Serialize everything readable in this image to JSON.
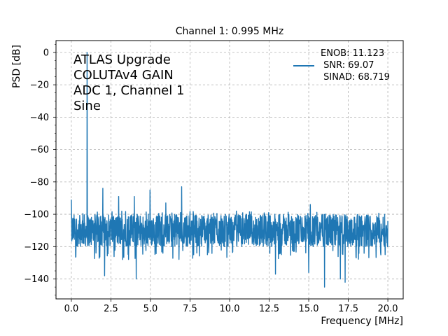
{
  "chart_data": {
    "type": "line",
    "title": "Channel 1: 0.995 MHz",
    "xlabel": "Frequency [MHz]",
    "ylabel": "PSD [dB]",
    "xlim": [
      -0.97,
      20.97
    ],
    "ylim": [
      -152.3,
      7.3
    ],
    "xticks": [
      0.0,
      2.5,
      5.0,
      7.5,
      10.0,
      12.5,
      15.0,
      17.5,
      20.0
    ],
    "xtick_labels": [
      "0.0",
      "2.5",
      "5.0",
      "7.5",
      "10.0",
      "12.5",
      "15.0",
      "17.5",
      "20.0"
    ],
    "yticks": [
      0,
      -20,
      -40,
      -60,
      -80,
      -100,
      -120,
      -140
    ],
    "ytick_labels": [
      "0",
      "−20",
      "−40",
      "−60",
      "−80",
      "−100",
      "−120",
      "−140"
    ],
    "grid": true,
    "grid_style": "dashed",
    "legend_position": "top-right",
    "series_color": "#1f77b4",
    "annotation_lines": [
      "ATLAS Upgrade",
      "COLUTAv4 GAIN",
      "ADC 1, Channel 1",
      "Sine"
    ],
    "legend_lines": [
      "ENOB: 11.123",
      " SNR: 69.07",
      " SINAD: 68.719"
    ],
    "series": [
      {
        "x_range": [
          0.0,
          20.0
        ],
        "noise_floor": -110,
        "noise_spread": [
          -120,
          -100
        ],
        "peaks": [
          {
            "x": 0.995,
            "y": 0
          },
          {
            "x": 0.0,
            "y": -91
          },
          {
            "x": 1.99,
            "y": -84
          },
          {
            "x": 2.99,
            "y": -89
          },
          {
            "x": 3.98,
            "y": -89
          },
          {
            "x": 4.97,
            "y": -85
          },
          {
            "x": 5.97,
            "y": -93
          },
          {
            "x": 6.97,
            "y": -83
          },
          {
            "x": 15.1,
            "y": -94
          },
          {
            "x": 17.0,
            "y": -95
          }
        ],
        "dips": [
          {
            "x": 2.1,
            "y": -138
          },
          {
            "x": 4.1,
            "y": -140
          },
          {
            "x": 12.9,
            "y": -137
          },
          {
            "x": 15.0,
            "y": -136
          },
          {
            "x": 16.0,
            "y": -145
          },
          {
            "x": 17.0,
            "y": -140
          },
          {
            "x": 17.3,
            "y": -142
          }
        ]
      }
    ]
  }
}
